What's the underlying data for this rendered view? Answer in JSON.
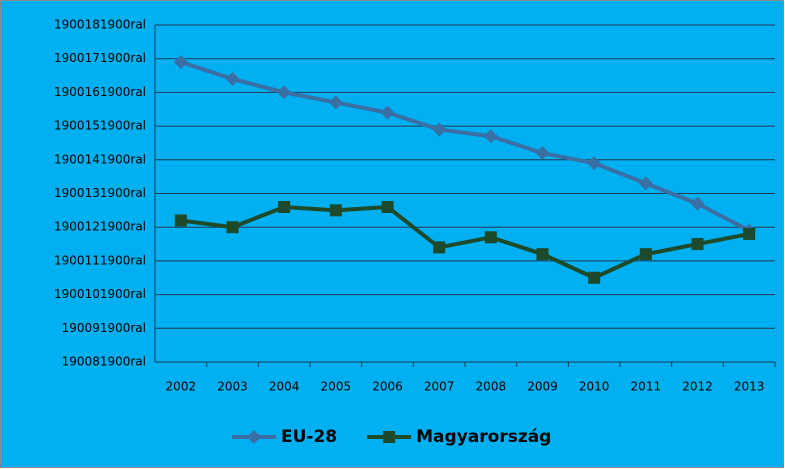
{
  "chart_data": {
    "type": "line",
    "categories": [
      "2002",
      "2003",
      "2004",
      "2005",
      "2006",
      "2007",
      "2008",
      "2009",
      "2010",
      "2011",
      "2012",
      "2013"
    ],
    "series": [
      {
        "name": "EU-28",
        "color": "#3a6fa6",
        "marker": "diamond",
        "values": [
          16.9,
          16.4,
          16.0,
          15.7,
          15.4,
          14.9,
          14.7,
          14.2,
          13.9,
          13.3,
          12.7,
          11.9
        ]
      },
      {
        "name": "Magyarország",
        "color": "#1e4a2c",
        "marker": "square",
        "values": [
          12.2,
          12.0,
          12.6,
          12.5,
          12.6,
          11.4,
          11.7,
          11.2,
          10.5,
          11.2,
          11.5,
          11.8
        ]
      }
    ],
    "ylim": [
      8,
      18
    ],
    "yticks": [
      {
        "value": 8,
        "label": "190081900ral"
      },
      {
        "value": 9,
        "label": "190091900ral"
      },
      {
        "value": 10,
        "label": "1900101900ral"
      },
      {
        "value": 11,
        "label": "1900111900ral"
      },
      {
        "value": 12,
        "label": "1900121900ral"
      },
      {
        "value": 13,
        "label": "1900131900ral"
      },
      {
        "value": 14,
        "label": "1900141900ral"
      },
      {
        "value": 15,
        "label": "1900151900ral"
      },
      {
        "value": 16,
        "label": "1900161900ral"
      },
      {
        "value": 17,
        "label": "1900171900ral"
      },
      {
        "value": 18,
        "label": "1900181900ral"
      }
    ],
    "grid": true,
    "legend": "bottom",
    "background": "#00b0f0"
  }
}
